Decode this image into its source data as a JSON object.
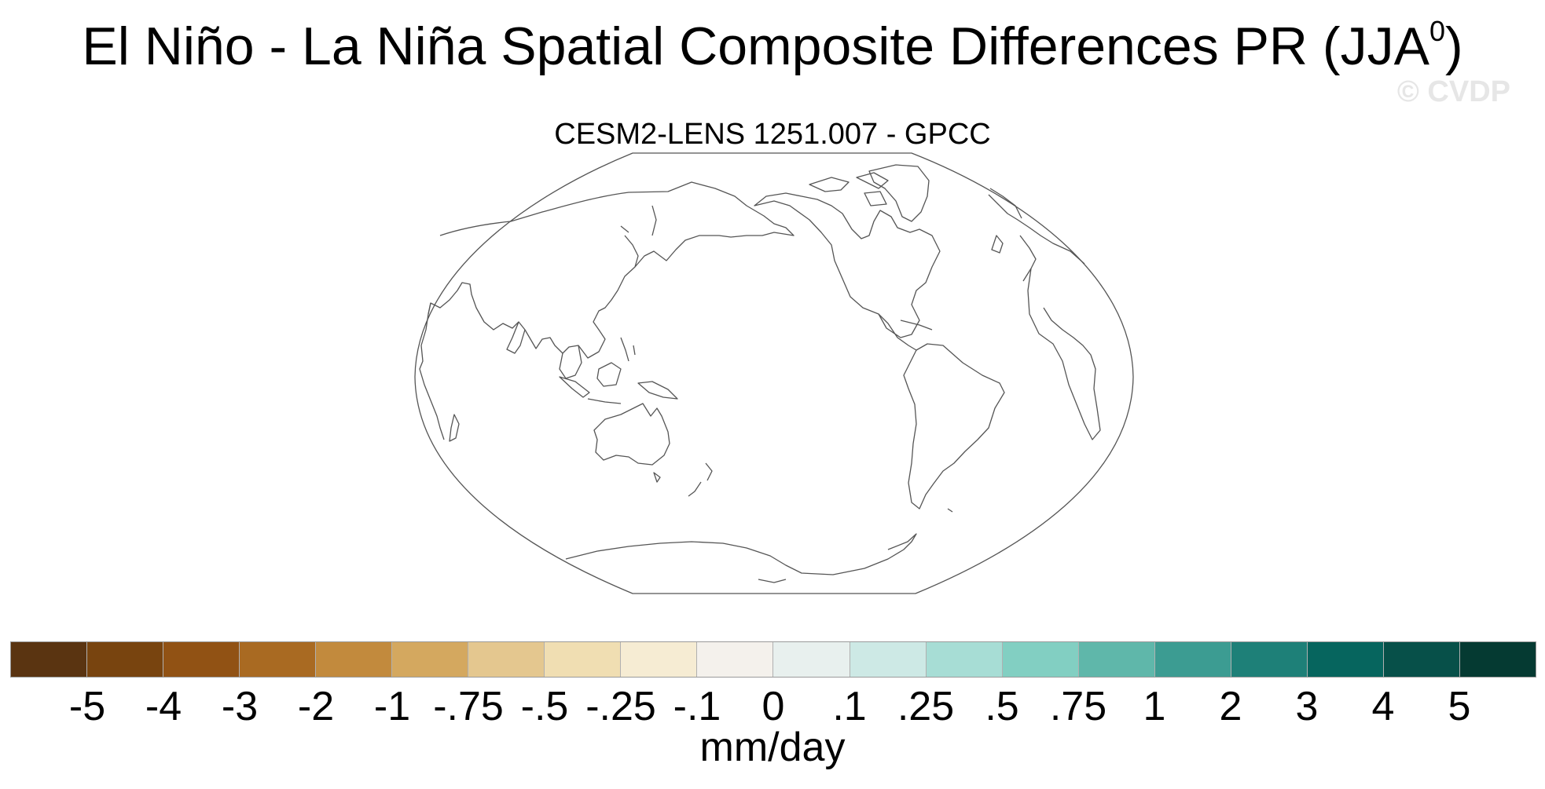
{
  "title": {
    "text": "El Niño - La Niña Spatial Composite Differences PR (JJA",
    "superscript": "0",
    "close": ")"
  },
  "watermark": "© CVDP",
  "panel": {
    "subtitle": "CESM2-LENS 1251.007 - GPCC",
    "projection": "Robinson",
    "central_longitude": 180,
    "field_shading": "none"
  },
  "colorbar": {
    "labels": [
      "-5",
      "-4",
      "-3",
      "-2",
      "-1",
      "-.75",
      "-.5",
      "-.25",
      "-.1",
      "0",
      ".1",
      ".25",
      ".5",
      ".75",
      "1",
      "2",
      "3",
      "4",
      "5"
    ],
    "colors": [
      "#5a3411",
      "#78440f",
      "#915214",
      "#a96a22",
      "#c28a3d",
      "#d4a85f",
      "#e4c78f",
      "#f0deb2",
      "#f6ecd3",
      "#f4f1ec",
      "#e8f0ee",
      "#cde9e5",
      "#a7ddd5",
      "#82cfc2",
      "#5fb7aa",
      "#3c9c92",
      "#1e8078",
      "#06655e",
      "#075049",
      "#053a32"
    ],
    "units": "mm/day"
  }
}
